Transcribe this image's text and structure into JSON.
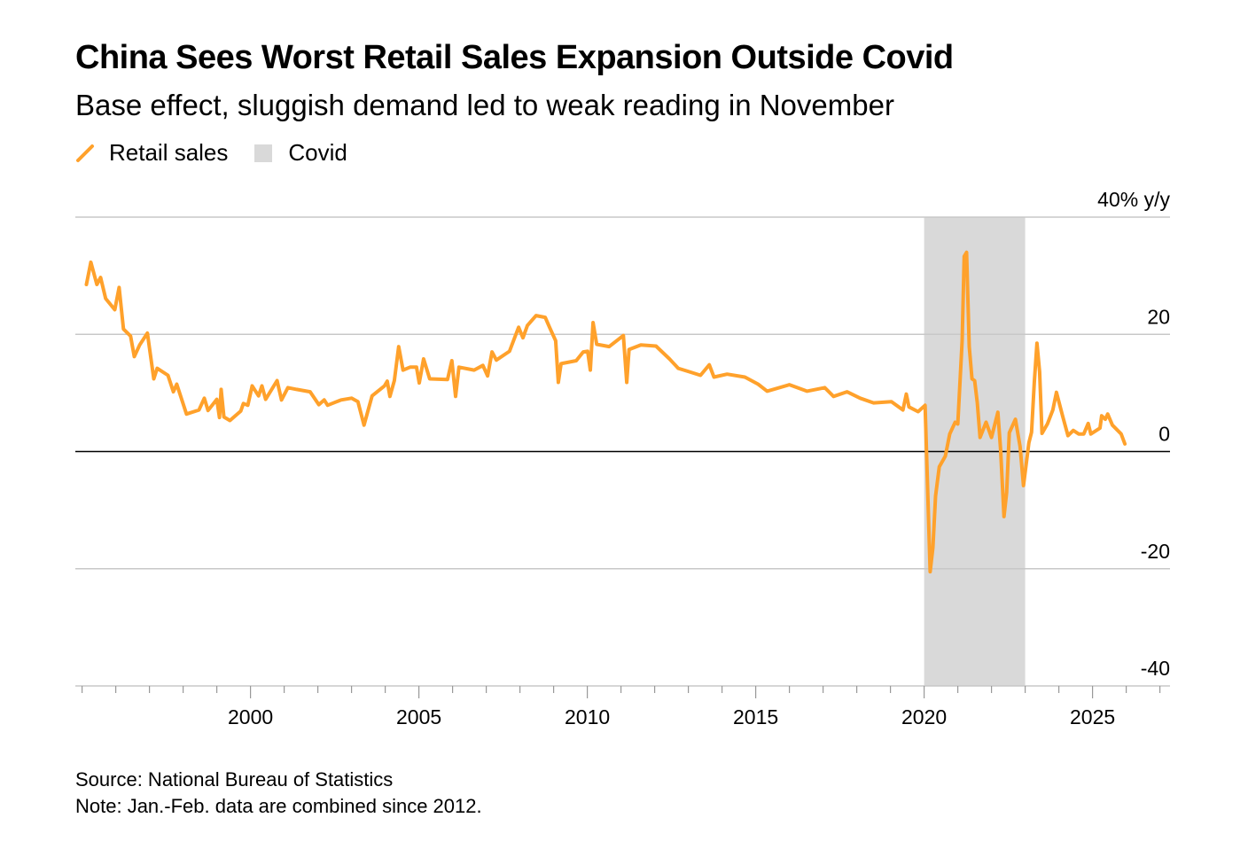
{
  "chart_data": {
    "type": "line",
    "title": "China Sees Worst Retail Sales Expansion Outside Covid",
    "subtitle": "Base effect, sluggish demand led to weak reading in November",
    "legend": [
      {
        "label": "Retail sales",
        "kind": "line",
        "color": "#ffa12b"
      },
      {
        "label": "Covid",
        "kind": "shade",
        "color": "#d9d9d9"
      }
    ],
    "legend_placement": "top-left",
    "ylabel": "40% y/y",
    "ylim": [
      -40,
      40
    ],
    "yticks": [
      40,
      20,
      0,
      -20,
      -40
    ],
    "ytick_labels": [
      "40% y/y",
      "20",
      "0",
      "-20",
      "-40"
    ],
    "xlim": [
      1994.8,
      2027.3
    ],
    "xticks": [
      2000,
      2005,
      2010,
      2015,
      2020,
      2025
    ],
    "xtick_labels": [
      "2000",
      "2005",
      "2010",
      "2015",
      "2020",
      "2025"
    ],
    "grid": true,
    "shaded_regions": [
      {
        "label": "Covid",
        "from": 2020.0,
        "to": 2023.0
      }
    ],
    "series": [
      {
        "name": "Retail sales",
        "color": "#ffa12b",
        "points": [
          [
            1995.13,
            28.5
          ],
          [
            1995.26,
            32.3
          ],
          [
            1995.44,
            28.5
          ],
          [
            1995.55,
            29.7
          ],
          [
            1995.7,
            26.1
          ],
          [
            1995.97,
            24.2
          ],
          [
            1996.1,
            28.0
          ],
          [
            1996.23,
            20.9
          ],
          [
            1996.44,
            19.7
          ],
          [
            1996.55,
            16.2
          ],
          [
            1996.71,
            18.2
          ],
          [
            1996.94,
            20.2
          ],
          [
            1997.13,
            12.4
          ],
          [
            1997.23,
            14.2
          ],
          [
            1997.55,
            13.0
          ],
          [
            1997.71,
            10.2
          ],
          [
            1997.81,
            11.5
          ],
          [
            1998.1,
            6.4
          ],
          [
            1998.47,
            7.1
          ],
          [
            1998.63,
            9.1
          ],
          [
            1998.74,
            7.0
          ],
          [
            1999.0,
            8.9
          ],
          [
            1999.08,
            5.8
          ],
          [
            1999.13,
            10.6
          ],
          [
            1999.21,
            5.9
          ],
          [
            1999.39,
            5.3
          ],
          [
            1999.71,
            6.9
          ],
          [
            1999.79,
            8.2
          ],
          [
            1999.92,
            7.9
          ],
          [
            2000.05,
            11.2
          ],
          [
            2000.24,
            9.5
          ],
          [
            2000.34,
            11.2
          ],
          [
            2000.45,
            8.9
          ],
          [
            2000.79,
            12.1
          ],
          [
            2000.92,
            8.8
          ],
          [
            2001.11,
            10.9
          ],
          [
            2001.37,
            10.6
          ],
          [
            2001.77,
            10.2
          ],
          [
            2002.03,
            8.0
          ],
          [
            2002.19,
            8.8
          ],
          [
            2002.29,
            7.9
          ],
          [
            2002.69,
            8.8
          ],
          [
            2003.0,
            9.1
          ],
          [
            2003.19,
            8.5
          ],
          [
            2003.37,
            4.5
          ],
          [
            2003.61,
            9.5
          ],
          [
            2003.98,
            11.2
          ],
          [
            2004.06,
            12.0
          ],
          [
            2004.14,
            9.4
          ],
          [
            2004.27,
            12.1
          ],
          [
            2004.4,
            17.9
          ],
          [
            2004.53,
            13.9
          ],
          [
            2004.74,
            14.4
          ],
          [
            2004.93,
            14.4
          ],
          [
            2005.01,
            11.7
          ],
          [
            2005.14,
            15.8
          ],
          [
            2005.32,
            12.4
          ],
          [
            2005.85,
            12.3
          ],
          [
            2005.98,
            15.5
          ],
          [
            2006.09,
            9.4
          ],
          [
            2006.19,
            14.4
          ],
          [
            2006.64,
            13.9
          ],
          [
            2006.9,
            14.7
          ],
          [
            2007.04,
            12.9
          ],
          [
            2007.17,
            17.0
          ],
          [
            2007.3,
            15.6
          ],
          [
            2007.69,
            17.1
          ],
          [
            2007.96,
            21.2
          ],
          [
            2008.09,
            19.4
          ],
          [
            2008.22,
            21.5
          ],
          [
            2008.48,
            23.2
          ],
          [
            2008.75,
            22.9
          ],
          [
            2008.88,
            21.2
          ],
          [
            2009.06,
            18.9
          ],
          [
            2009.14,
            11.8
          ],
          [
            2009.22,
            15.0
          ],
          [
            2009.67,
            15.5
          ],
          [
            2009.88,
            17.0
          ],
          [
            2010.01,
            17.1
          ],
          [
            2010.09,
            13.9
          ],
          [
            2010.17,
            22.0
          ],
          [
            2010.28,
            18.3
          ],
          [
            2010.65,
            17.9
          ],
          [
            2011.07,
            19.8
          ],
          [
            2011.17,
            11.8
          ],
          [
            2011.24,
            17.4
          ],
          [
            2011.59,
            18.2
          ],
          [
            2012.04,
            18.0
          ],
          [
            2012.44,
            15.8
          ],
          [
            2012.7,
            14.2
          ],
          [
            2013.04,
            13.6
          ],
          [
            2013.36,
            13.0
          ],
          [
            2013.62,
            14.8
          ],
          [
            2013.76,
            12.7
          ],
          [
            2014.15,
            13.2
          ],
          [
            2014.68,
            12.7
          ],
          [
            2015.07,
            11.5
          ],
          [
            2015.34,
            10.3
          ],
          [
            2016.0,
            11.4
          ],
          [
            2016.52,
            10.3
          ],
          [
            2017.05,
            10.9
          ],
          [
            2017.31,
            9.4
          ],
          [
            2017.71,
            10.2
          ],
          [
            2018.1,
            9.1
          ],
          [
            2018.5,
            8.3
          ],
          [
            2019.03,
            8.5
          ],
          [
            2019.37,
            7.1
          ],
          [
            2019.47,
            9.8
          ],
          [
            2019.55,
            7.6
          ],
          [
            2019.82,
            6.8
          ],
          [
            2020.03,
            7.9
          ],
          [
            2020.18,
            -20.5
          ],
          [
            2020.26,
            -16.4
          ],
          [
            2020.34,
            -7.6
          ],
          [
            2020.45,
            -2.6
          ],
          [
            2020.63,
            -0.8
          ],
          [
            2020.76,
            3.0
          ],
          [
            2020.92,
            5.0
          ],
          [
            2021.0,
            4.7
          ],
          [
            2021.13,
            18.9
          ],
          [
            2021.19,
            33.3
          ],
          [
            2021.26,
            34.0
          ],
          [
            2021.34,
            17.9
          ],
          [
            2021.42,
            12.4
          ],
          [
            2021.5,
            12.1
          ],
          [
            2021.58,
            8.3
          ],
          [
            2021.66,
            2.4
          ],
          [
            2021.84,
            5.0
          ],
          [
            2022.0,
            2.4
          ],
          [
            2022.19,
            6.7
          ],
          [
            2022.27,
            0.3
          ],
          [
            2022.37,
            -11.1
          ],
          [
            2022.45,
            -7.0
          ],
          [
            2022.53,
            3.2
          ],
          [
            2022.71,
            5.5
          ],
          [
            2022.85,
            0.8
          ],
          [
            2022.95,
            -5.8
          ],
          [
            2023.11,
            1.5
          ],
          [
            2023.19,
            3.3
          ],
          [
            2023.27,
            11.8
          ],
          [
            2023.35,
            18.5
          ],
          [
            2023.43,
            13.6
          ],
          [
            2023.5,
            3.1
          ],
          [
            2023.66,
            4.7
          ],
          [
            2023.82,
            7.1
          ],
          [
            2023.93,
            10.1
          ],
          [
            2024.11,
            6.1
          ],
          [
            2024.27,
            2.7
          ],
          [
            2024.43,
            3.6
          ],
          [
            2024.59,
            3.0
          ],
          [
            2024.74,
            3.0
          ],
          [
            2024.87,
            4.8
          ],
          [
            2024.95,
            3.0
          ],
          [
            2025.22,
            4.0
          ],
          [
            2025.27,
            6.1
          ],
          [
            2025.38,
            5.5
          ],
          [
            2025.45,
            6.4
          ],
          [
            2025.59,
            4.5
          ],
          [
            2025.85,
            3.0
          ],
          [
            2025.96,
            1.3
          ]
        ]
      }
    ],
    "source": "Source: National Bureau of Statistics",
    "note": "Note: Jan.-Feb. data are combined since 2012."
  }
}
